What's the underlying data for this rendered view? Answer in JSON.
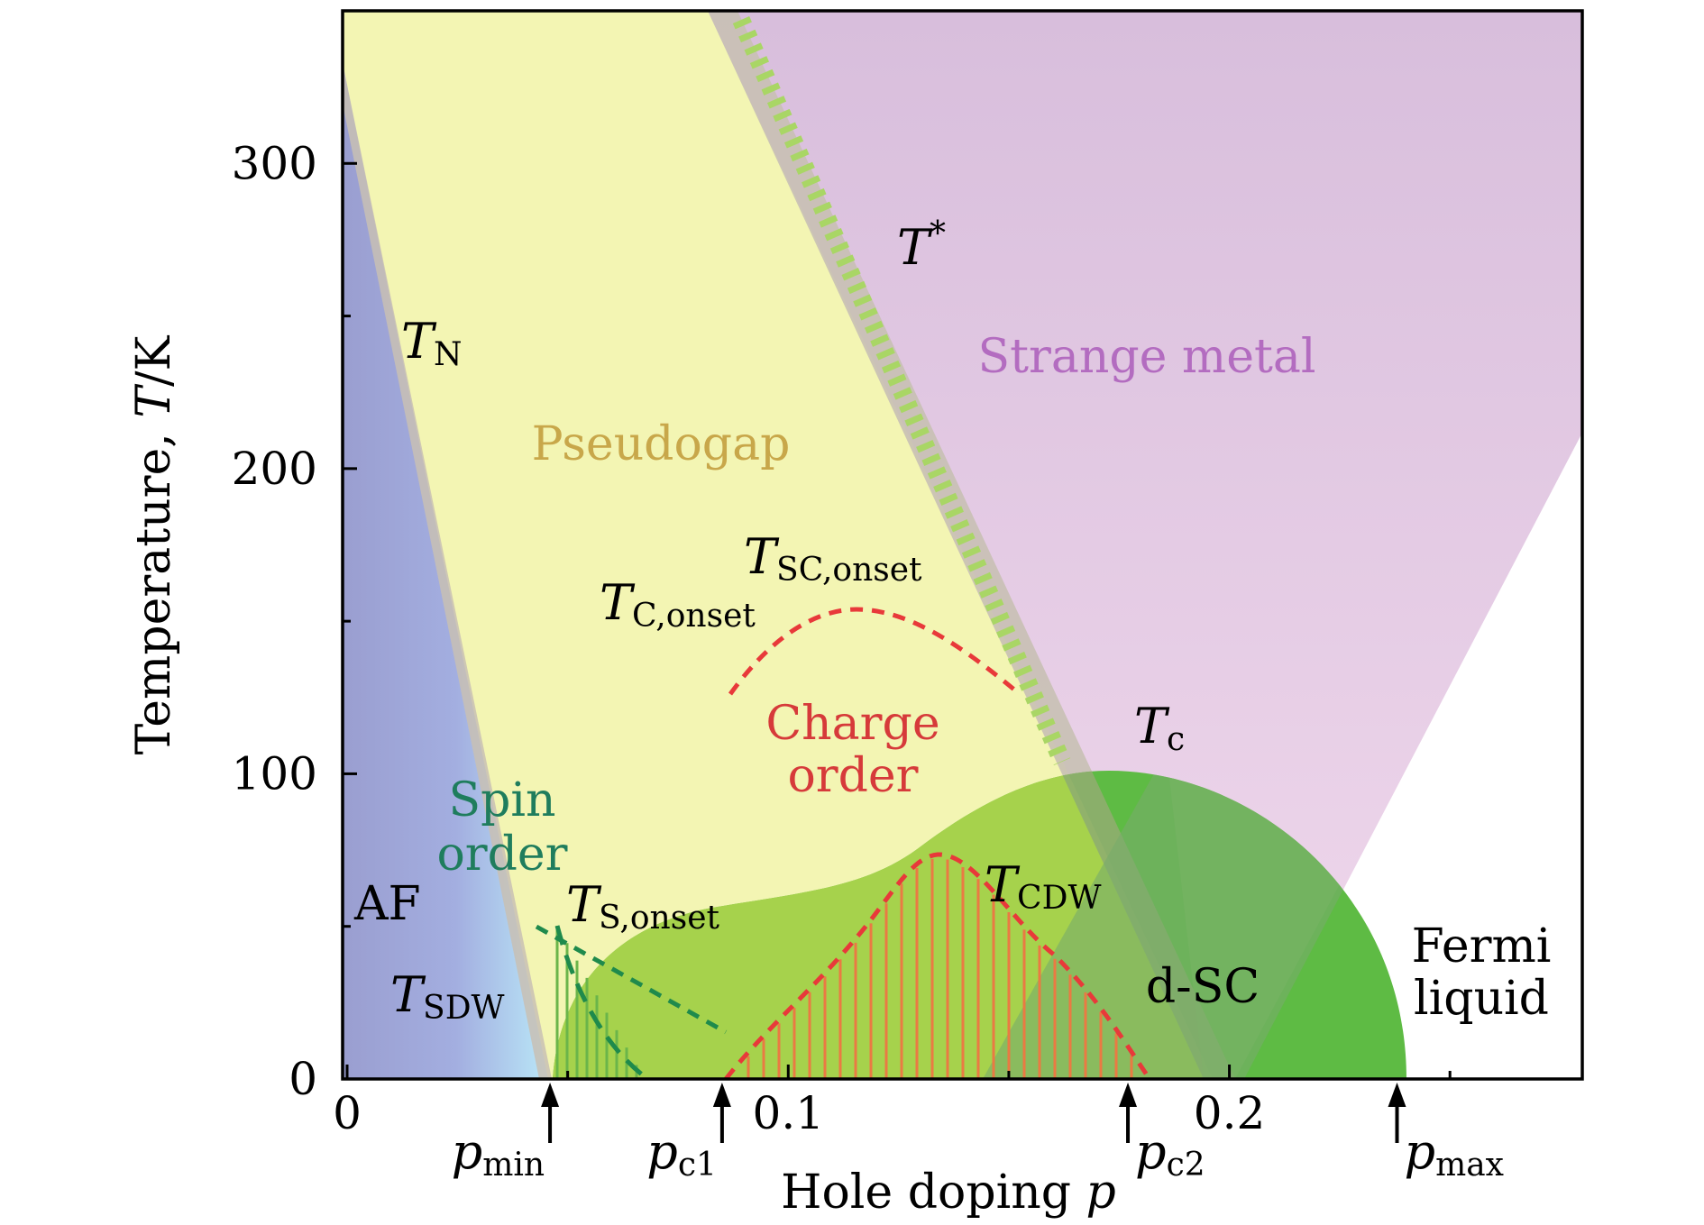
{
  "diagram": {
    "x_axis": {
      "label": "Hole doping ",
      "label_var": "p",
      "range": [
        0,
        0.28
      ],
      "ticks": [
        {
          "value": 0,
          "label": "0"
        },
        {
          "value": 0.1,
          "label": "0.1"
        },
        {
          "value": 0.2,
          "label": "0.2"
        }
      ]
    },
    "y_axis": {
      "label_prefix": "Temperature, ",
      "label_var": "T",
      "label_suffix": "/K",
      "range": [
        0,
        350
      ],
      "ticks": [
        {
          "value": 0,
          "label": "0"
        },
        {
          "value": 100,
          "label": "100"
        },
        {
          "value": 200,
          "label": "200"
        },
        {
          "value": 300,
          "label": "300"
        }
      ]
    },
    "regions": {
      "af": "AF",
      "spin_order": [
        "Spin",
        "order"
      ],
      "pseudogap": "Pseudogap",
      "strange_metal": "Strange metal",
      "charge_order": [
        "Charge",
        "order"
      ],
      "d_sc": "d-SC",
      "fermi_liquid": [
        "Fermi",
        "liquid"
      ]
    },
    "line_labels": {
      "t_n": {
        "main": "T",
        "sub": "N"
      },
      "t_star": {
        "main": "T",
        "sup": "*"
      },
      "t_c": {
        "main": "T",
        "sub": "c"
      },
      "t_sdw": {
        "main": "T",
        "sub": "SDW"
      },
      "t_cdw": {
        "main": "T",
        "sub": "CDW"
      },
      "t_s_onset": {
        "main": "T",
        "sub": "S,onset"
      },
      "t_c_onset": {
        "main": "T",
        "sub": "C,onset"
      },
      "t_sc_onset": {
        "main": "T",
        "sub": "SC,onset"
      }
    },
    "critical_dopings": [
      {
        "main": "p",
        "sub": "min",
        "value": 0.046
      },
      {
        "main": "p",
        "sub": "c1",
        "value": 0.085
      },
      {
        "main": "p",
        "sub": "c2",
        "value": 0.177
      },
      {
        "main": "p",
        "sub": "max",
        "value": 0.238
      }
    ],
    "colors": {
      "af": "#9a9ed0",
      "spin": "#b5e6f6",
      "pseudogap": "#f3f5b3",
      "strange_metal": "#dcc3df",
      "sc": "#5ebb44",
      "sc_light": "#a3cf4d",
      "charge_line": "#e8393a",
      "spin_line": "#1f8a4c",
      "tstar_hatch": "#a9d665",
      "band": "#c8c0b4",
      "pseudogap_text": "#c8a74a",
      "strange_metal_text": "#b36cc0",
      "spin_text": "#1f7d5d",
      "charge_text": "#d63a3a"
    }
  }
}
